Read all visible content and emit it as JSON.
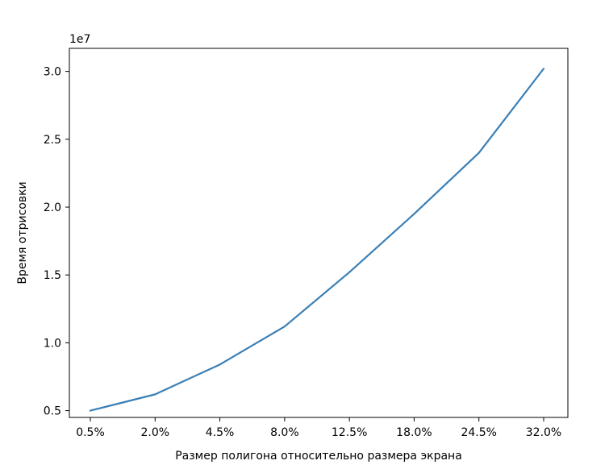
{
  "chart_data": {
    "type": "line",
    "title": "",
    "xlabel": "Размер полигона относительно размера экрана",
    "ylabel": "Время отрисовки",
    "y_offset_label": "1e7",
    "categories": [
      "0.5%",
      "2.0%",
      "4.5%",
      "8.0%",
      "12.5%",
      "18.0%",
      "24.5%",
      "32.0%"
    ],
    "series": [
      {
        "values": [
          5000000,
          6200000,
          8400000,
          11200000,
          15200000,
          19500000,
          24000000,
          30200000
        ]
      }
    ],
    "yticks": [
      5000000,
      10000000,
      15000000,
      20000000,
      25000000,
      30000000
    ],
    "ytick_labels": [
      "0.5",
      "1.0",
      "1.5",
      "2.0",
      "2.5",
      "3.0"
    ],
    "ylim": [
      4500000,
      31700000
    ],
    "grid": false,
    "line_color": "#3a7fb5"
  }
}
